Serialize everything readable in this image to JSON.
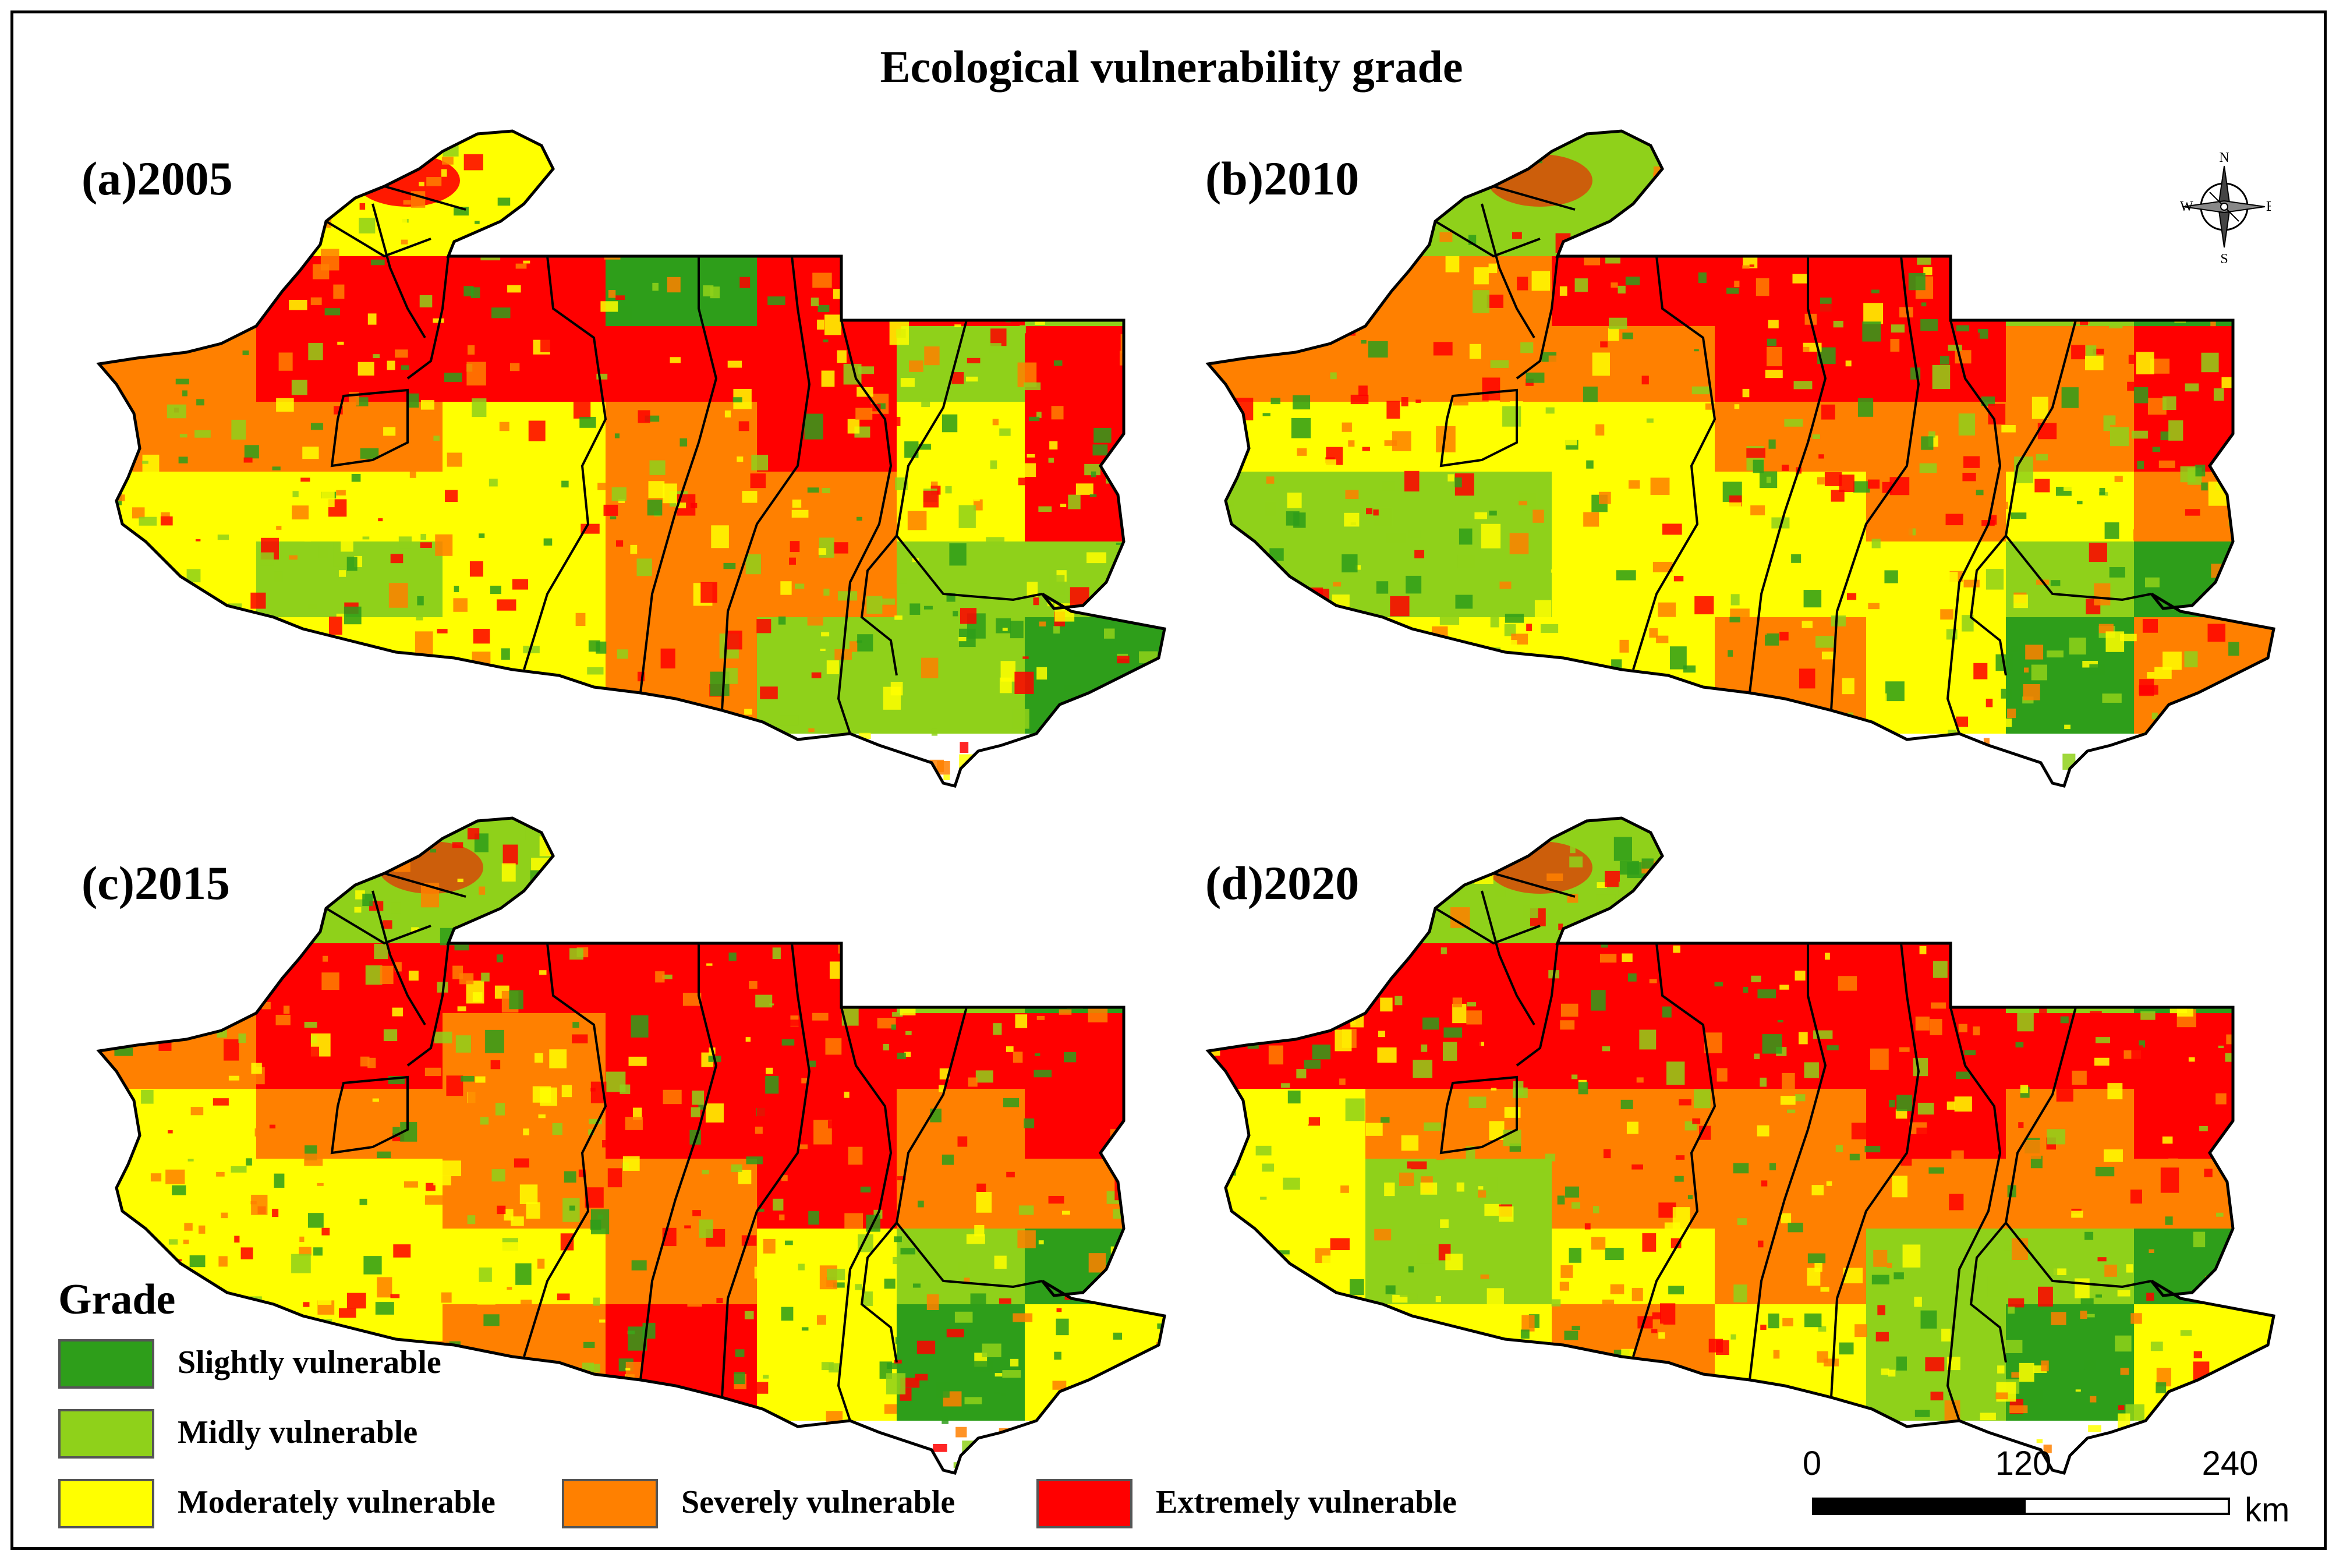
{
  "title": "Ecological vulnerability grade",
  "panels": [
    {
      "label": "(a)2005",
      "year": 2005,
      "dominant": [
        "extreme",
        "severe",
        "moderate"
      ]
    },
    {
      "label": "(b)2010",
      "year": 2010,
      "dominant": [
        "severe",
        "moderate",
        "extreme"
      ]
    },
    {
      "label": "(c)2015",
      "year": 2015,
      "dominant": [
        "extreme",
        "severe",
        "moderate"
      ]
    },
    {
      "label": "(d)2020",
      "year": 2020,
      "dominant": [
        "extreme",
        "severe",
        "moderate"
      ]
    }
  ],
  "legend": {
    "title": "Grade",
    "items": [
      {
        "key": "slight",
        "label": "Slightly vulnerable",
        "color": "#2e9e1a"
      },
      {
        "key": "mild",
        "label": "Midly vulnerable",
        "color": "#8fd11a"
      },
      {
        "key": "moderate",
        "label": "Moderately vulnerable",
        "color": "#ffff00"
      },
      {
        "key": "severe",
        "label": "Severely vulnerable",
        "color": "#ff8000"
      },
      {
        "key": "extreme",
        "label": "Extremely vulnerable",
        "color": "#ff0000"
      }
    ]
  },
  "scale_bar": {
    "ticks": [
      "0",
      "120",
      "240"
    ],
    "unit": "km"
  },
  "compass": {
    "n": "N",
    "s": "S",
    "e": "E",
    "w": "W"
  }
}
